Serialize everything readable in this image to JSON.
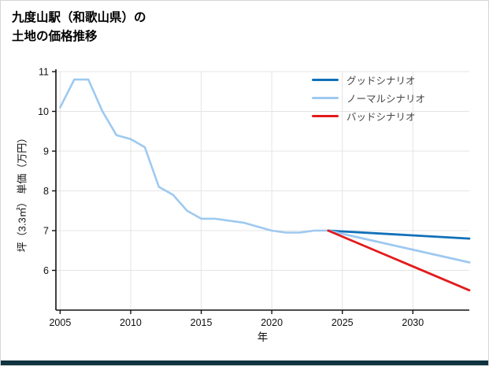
{
  "page": {
    "title_line1": "九度山駅（和歌山県）の",
    "title_line2": "土地の価格推移",
    "footer_bar_color": "#10333f"
  },
  "chart_data": {
    "type": "line",
    "title": "九度山駅（和歌山県）の土地の価格推移",
    "xlabel": "年",
    "ylabel": "坪（3.3㎡） 単価（万円）",
    "xlim": [
      2004.7,
      2034
    ],
    "ylim": [
      5,
      11
    ],
    "xticks": [
      2005,
      2010,
      2015,
      2020,
      2025,
      2030
    ],
    "yticks": [
      6,
      7,
      8,
      9,
      10,
      11
    ],
    "grid": true,
    "legend_position": "top-right-inside",
    "axis_color": "#111111",
    "grid_color": "#e4e4e4",
    "series": [
      {
        "name": "historical",
        "color": "#9ec9f0",
        "width": 2.6,
        "x": [
          2005,
          2006,
          2007,
          2008,
          2009,
          2010,
          2011,
          2012,
          2013,
          2014,
          2015,
          2016,
          2017,
          2018,
          2019,
          2020,
          2021,
          2022,
          2023,
          2024
        ],
        "values": [
          10.1,
          10.8,
          10.8,
          10.0,
          9.4,
          9.3,
          9.1,
          8.1,
          7.9,
          7.5,
          7.3,
          7.3,
          7.25,
          7.2,
          7.1,
          7.0,
          6.95,
          6.95,
          7.0,
          7.0
        ]
      },
      {
        "name": "グッドシナリオ",
        "color": "#1170b8",
        "width": 2.8,
        "x": [
          2024,
          2034
        ],
        "values": [
          7.0,
          6.8
        ]
      },
      {
        "name": "ノーマルシナリオ",
        "color": "#9ec9f0",
        "width": 2.8,
        "x": [
          2024,
          2034
        ],
        "values": [
          7.0,
          6.2
        ]
      },
      {
        "name": "バッドシナリオ",
        "color": "#e31a1c",
        "width": 2.8,
        "x": [
          2024,
          2034
        ],
        "values": [
          7.0,
          5.5
        ]
      }
    ],
    "legend": [
      {
        "label": "グッドシナリオ",
        "color": "#1170b8"
      },
      {
        "label": "ノーマルシナリオ",
        "color": "#9ec9f0"
      },
      {
        "label": "バッドシナリオ",
        "color": "#e31a1c"
      }
    ]
  }
}
